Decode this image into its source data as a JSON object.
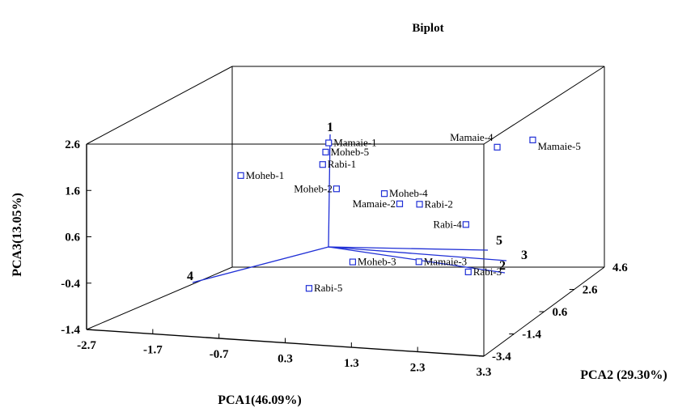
{
  "chart_data": {
    "type": "scatter",
    "title": "Biplot",
    "xlabel": "PCA1(46.09%)",
    "ylabel": "PCA2 (29.30%)",
    "zlabel": "PCA3(13.05%)",
    "x_ticks": [
      "-2.7",
      "-1.7",
      "-0.7",
      "0.3",
      "1.3",
      "2.3",
      "3.3"
    ],
    "y_ticks": [
      "-3.4",
      "-1.4",
      "0.6",
      "2.6",
      "4.6"
    ],
    "z_ticks": [
      "2.6",
      "1.6",
      "0.6",
      "-0.4",
      "-1.4"
    ],
    "xlim": [
      -2.7,
      3.3
    ],
    "ylim": [
      -3.4,
      4.6
    ],
    "zlim": [
      -1.4,
      2.6
    ],
    "points": [
      {
        "label": "Mamaie-1",
        "x": -0.5,
        "y": 3.0,
        "z": 1.3
      },
      {
        "label": "Moheb-5",
        "x": -0.5,
        "y": 2.8,
        "z": 1.15
      },
      {
        "label": "Rabi-1",
        "x": -0.5,
        "y": 2.6,
        "z": 0.93
      },
      {
        "label": "Moheb-1",
        "x": -1.6,
        "y": 2.0,
        "z": 0.73
      },
      {
        "label": "Moheb-2",
        "x": -0.2,
        "y": 2.2,
        "z": 0.53
      },
      {
        "label": "Moheb-4",
        "x": 0.5,
        "y": 2.3,
        "z": 0.47
      },
      {
        "label": "Mamaie-2",
        "x": 0.8,
        "y": 2.0,
        "z": 0.35
      },
      {
        "label": "Rabi-2",
        "x": 1.1,
        "y": 2.0,
        "z": 0.37
      },
      {
        "label": "Mamaie-4",
        "x": 2.0,
        "y": 3.2,
        "z": 1.4
      },
      {
        "label": "Mamaie-5",
        "x": 2.4,
        "y": 3.8,
        "z": 1.45
      },
      {
        "label": "Rabi-4",
        "x": 1.8,
        "y": 2.0,
        "z": 0.0
      },
      {
        "label": "Moheb-3",
        "x": 0.5,
        "y": 0.2,
        "z": -0.5
      },
      {
        "label": "Mamaie-3",
        "x": 1.5,
        "y": 0.2,
        "z": -0.4
      },
      {
        "label": "Rabi-3",
        "x": 2.2,
        "y": 0.4,
        "z": -0.6
      },
      {
        "label": "Rabi-5",
        "x": 0.0,
        "y": -0.5,
        "z": -0.95
      }
    ],
    "vectors": [
      {
        "label": "1"
      },
      {
        "label": "2"
      },
      {
        "label": "3"
      },
      {
        "label": "4"
      },
      {
        "label": "5"
      }
    ],
    "grid": false,
    "legend": "none"
  }
}
